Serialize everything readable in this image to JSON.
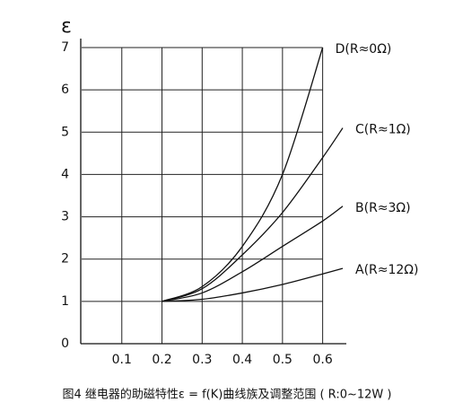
{
  "chart_data": {
    "type": "line",
    "y_label": "ε",
    "caption": "图4 继电器的助磁特性ε = f(K)曲线族及调整范围 ( R:0~12W )",
    "xlim": [
      0,
      0.65
    ],
    "ylim": [
      0,
      7
    ],
    "xticks": [
      0.1,
      0.2,
      0.3,
      0.4,
      0.5,
      0.6
    ],
    "yticks": [
      0,
      1,
      2,
      3,
      4,
      5,
      6,
      7
    ],
    "grid": true,
    "series": [
      {
        "name": "D(R≈0Ω)",
        "color": "#111111",
        "x": [
          0.2,
          0.3,
          0.4,
          0.5,
          0.6
        ],
        "values": [
          1,
          1.35,
          2.3,
          4.0,
          7
        ]
      },
      {
        "name": "C(R≈1Ω)",
        "color": "#111111",
        "x": [
          0.2,
          0.3,
          0.4,
          0.5,
          0.6,
          0.65
        ],
        "values": [
          1,
          1.3,
          2.1,
          3.1,
          4.4,
          5.1
        ]
      },
      {
        "name": "B(R≈3Ω)",
        "color": "#111111",
        "x": [
          0.2,
          0.3,
          0.4,
          0.5,
          0.6,
          0.65
        ],
        "values": [
          1,
          1.2,
          1.7,
          2.3,
          2.9,
          3.25
        ]
      },
      {
        "name": "A(R≈12Ω)",
        "color": "#111111",
        "x": [
          0.2,
          0.3,
          0.4,
          0.5,
          0.6,
          0.65
        ],
        "values": [
          1,
          1.05,
          1.2,
          1.4,
          1.65,
          1.78
        ]
      }
    ]
  }
}
